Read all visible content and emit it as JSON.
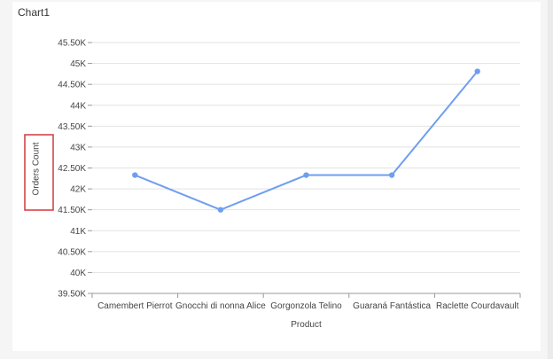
{
  "title": "Chart1",
  "colors": {
    "series_line": "#6f9ef0",
    "gridline": "#e2e2e2",
    "axis": "#999999",
    "highlight_box": "#d0393c"
  },
  "chart_data": {
    "type": "line",
    "categories": [
      "Camembert Pierrot",
      "Gnocchi di nonna Alice",
      "Gorgonzola Telino",
      "Guaraná Fantástica",
      "Raclette Courdavault"
    ],
    "series": [
      {
        "values": [
          42330,
          41500,
          42330,
          42330,
          44810
        ]
      }
    ],
    "xlabel": "Product",
    "ylabel": "Orders Count",
    "ylim": [
      39500,
      45500
    ],
    "yticks": [
      39500,
      40000,
      40500,
      41000,
      41500,
      42000,
      42500,
      43000,
      43500,
      44000,
      44500,
      45000,
      45500
    ],
    "ytick_labels": [
      "39.50K",
      "40K",
      "40.50K",
      "41K",
      "41.50K",
      "42K",
      "42.50K",
      "43K",
      "43.50K",
      "44K",
      "44.50K",
      "45K",
      "45.50K"
    ],
    "grid": true,
    "legend": "none"
  }
}
